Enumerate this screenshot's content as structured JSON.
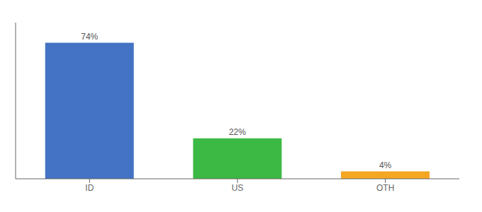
{
  "chart_data": {
    "type": "bar",
    "categories": [
      "ID",
      "US",
      "OTH"
    ],
    "values": [
      74,
      22,
      4
    ],
    "value_labels": [
      "74%",
      "22%",
      "4%"
    ],
    "colors": [
      "#4472c4",
      "#3cb944",
      "#f5a623"
    ],
    "ylim": [
      0,
      85
    ],
    "grid": false,
    "data_labels": true,
    "tick_labels": "x"
  }
}
